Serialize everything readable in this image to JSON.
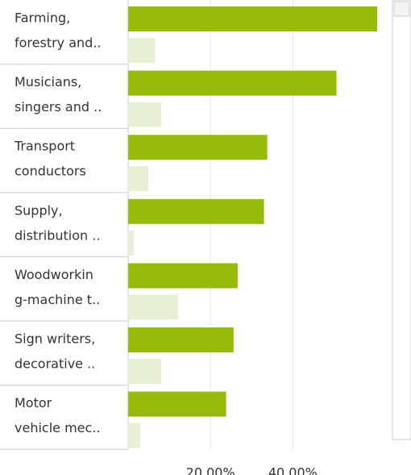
{
  "chart_data": {
    "type": "hbar",
    "categories": [
      [
        "Farming,",
        "forestry and.."
      ],
      [
        "Musicians,",
        "singers and .."
      ],
      [
        "Transport",
        "conductors"
      ],
      [
        "Supply,",
        "distribution .."
      ],
      [
        "Woodworkin",
        "g-machine t.."
      ],
      [
        "Sign writers,",
        "decorative .."
      ],
      [
        "Motor",
        "vehicle mec.."
      ]
    ],
    "series": [
      {
        "color": "#95bc0a",
        "values": [
          60.5,
          50.6,
          33.8,
          33.0,
          26.6,
          25.6,
          23.8
        ]
      },
      {
        "color": "#e8f0d4",
        "values": [
          6.6,
          8.0,
          4.9,
          1.4,
          12.1,
          8.0,
          2.9
        ]
      }
    ],
    "xlim": [
      0,
      64
    ],
    "xticks": [
      {
        "value": 20,
        "label": "20.00%"
      },
      {
        "value": 40,
        "label": "40.00%"
      }
    ],
    "grid": true
  }
}
